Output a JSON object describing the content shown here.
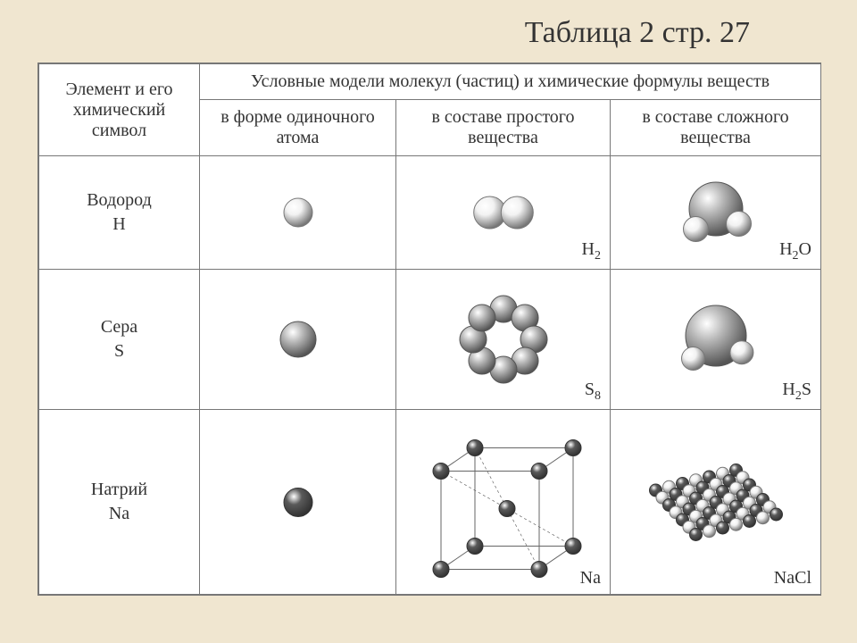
{
  "title": "Таблица 2 стр. 27",
  "colors": {
    "page_bg": "#f0e6d0",
    "cell_bg": "#ffffff",
    "border": "#777777",
    "text": "#333333",
    "atom_light_fill": "#f2f2f2",
    "atom_light_stroke": "#777777",
    "atom_mid_fill": "#b8b8b8",
    "atom_mid_stroke": "#555555",
    "atom_dark_fill": "#5a5a5a",
    "atom_dark_stroke": "#333333",
    "lattice_line": "#666666"
  },
  "fonts": {
    "title_size": 34,
    "cell_size": 20,
    "sub_size": 14
  },
  "headers": {
    "row_header": "Элемент и его химический символ",
    "group_header": "Условные модели молекул (частиц) и химические формулы веществ",
    "col_single": "в форме одиночного атома",
    "col_simple": "в составе простого вещества",
    "col_complex": "в составе сложного вещества"
  },
  "rows": [
    {
      "key": "hydrogen",
      "name": "Водород",
      "symbol": "H",
      "single": {
        "atom_radius": 16,
        "fill_key": "atom_light_fill",
        "stroke_key": "atom_light_stroke"
      },
      "simple": {
        "formula_base": "H",
        "formula_sub": "2",
        "type": "diatomic",
        "atom_radius": 18,
        "fill_key": "atom_light_fill",
        "stroke_key": "atom_light_stroke"
      },
      "complex": {
        "formula_base": "H",
        "formula_sub": "2",
        "formula_tail": "O",
        "type": "h2o",
        "big_radius": 30,
        "small_radius": 14,
        "big_fill_key": "atom_mid_fill",
        "big_stroke_key": "atom_mid_stroke",
        "small_fill_key": "atom_light_fill",
        "small_stroke_key": "atom_light_stroke"
      }
    },
    {
      "key": "sulfur",
      "name": "Сера",
      "symbol": "S",
      "single": {
        "atom_radius": 20,
        "fill_key": "atom_mid_fill",
        "stroke_key": "atom_mid_stroke"
      },
      "simple": {
        "formula_base": "S",
        "formula_sub": "8",
        "type": "s8_ring",
        "atom_radius": 15,
        "ring_radius": 34,
        "fill_key": "atom_mid_fill",
        "stroke_key": "atom_mid_stroke"
      },
      "complex": {
        "formula_base": "H",
        "formula_sub": "2",
        "formula_tail": "S",
        "type": "h2s",
        "big_radius": 34,
        "small_radius": 13,
        "big_fill_key": "atom_mid_fill",
        "big_stroke_key": "atom_mid_stroke",
        "small_fill_key": "atom_light_fill",
        "small_stroke_key": "atom_light_stroke"
      }
    },
    {
      "key": "sodium",
      "name": "Натрий",
      "symbol": "Na",
      "single": {
        "atom_radius": 16,
        "fill_key": "atom_dark_fill",
        "stroke_key": "atom_dark_stroke"
      },
      "simple": {
        "formula_base": "Na",
        "formula_sub": "",
        "type": "bcc_lattice",
        "atom_radius": 9,
        "cube_size": 110,
        "fill_key": "atom_dark_fill",
        "stroke_key": "atom_dark_stroke",
        "line_key": "lattice_line"
      },
      "complex": {
        "formula_base": "NaCl",
        "formula_sub": "",
        "type": "nacl_crystal",
        "rows": 7,
        "cols": 7,
        "atom_radius": 7,
        "spacing": 15,
        "fill_a_key": "atom_dark_fill",
        "stroke_a_key": "atom_dark_stroke",
        "fill_b_key": "atom_light_fill",
        "stroke_b_key": "atom_light_stroke"
      }
    }
  ]
}
